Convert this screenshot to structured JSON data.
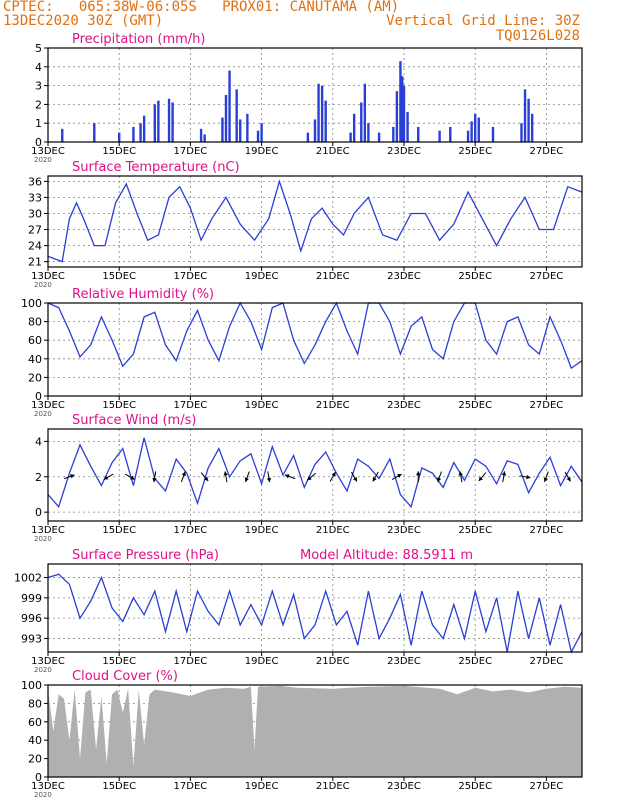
{
  "header": {
    "line1": "CPTEC:   065:38W-06:05S   PROX01: CANUTAMA (AM)",
    "line2": "13DEC2020 30Z (GMT)",
    "grid_note": "Vertical Grid Line: 30Z",
    "code": "TQ0126L028",
    "color": "#e07010"
  },
  "colors": {
    "title": "#e0108a",
    "series": "#2a3fd6",
    "cloud": "#b0b0b0"
  },
  "x_axis": {
    "start_day": 13,
    "end_day": 28,
    "tick_labels": [
      "13DEC",
      "15DEC",
      "17DEC",
      "19DEC",
      "21DEC",
      "23DEC",
      "25DEC",
      "27DEC"
    ],
    "tick_days": [
      13,
      15,
      17,
      19,
      21,
      23,
      25,
      27
    ],
    "year_label": "2020"
  },
  "chart_data": [
    {
      "type": "bar",
      "title": "Precipitation (mm/h)",
      "ylim": [
        0,
        5
      ],
      "yticks": [
        0,
        1,
        2,
        3,
        4,
        5
      ],
      "bars": [
        [
          13.4,
          0.7
        ],
        [
          14.3,
          1.0
        ],
        [
          15.0,
          0.5
        ],
        [
          15.4,
          0.8
        ],
        [
          15.6,
          1.0
        ],
        [
          15.7,
          1.4
        ],
        [
          16.0,
          2.0
        ],
        [
          16.1,
          2.2
        ],
        [
          16.4,
          2.3
        ],
        [
          16.5,
          2.1
        ],
        [
          17.3,
          0.7
        ],
        [
          17.4,
          0.4
        ],
        [
          17.9,
          1.3
        ],
        [
          18.0,
          2.5
        ],
        [
          18.1,
          3.8
        ],
        [
          18.3,
          2.8
        ],
        [
          18.4,
          1.2
        ],
        [
          18.6,
          1.5
        ],
        [
          18.9,
          0.6
        ],
        [
          19.0,
          1.0
        ],
        [
          20.3,
          0.5
        ],
        [
          20.5,
          1.2
        ],
        [
          20.6,
          3.1
        ],
        [
          20.7,
          3.0
        ],
        [
          20.8,
          2.2
        ],
        [
          21.5,
          0.5
        ],
        [
          21.6,
          1.5
        ],
        [
          21.8,
          2.1
        ],
        [
          21.9,
          3.1
        ],
        [
          22.0,
          1.0
        ],
        [
          22.3,
          0.5
        ],
        [
          22.7,
          0.8
        ],
        [
          22.8,
          2.7
        ],
        [
          22.9,
          4.3
        ],
        [
          22.95,
          3.5
        ],
        [
          23.0,
          3.0
        ],
        [
          23.1,
          1.6
        ],
        [
          23.4,
          0.8
        ],
        [
          24.0,
          0.6
        ],
        [
          24.3,
          0.8
        ],
        [
          24.8,
          0.6
        ],
        [
          24.9,
          1.1
        ],
        [
          25.0,
          1.5
        ],
        [
          25.1,
          1.3
        ],
        [
          25.5,
          0.8
        ],
        [
          26.3,
          1.0
        ],
        [
          26.4,
          2.8
        ],
        [
          26.5,
          2.3
        ],
        [
          26.6,
          1.5
        ]
      ]
    },
    {
      "type": "line",
      "title": "Surface Temperature (nC)",
      "ylim": [
        20,
        37
      ],
      "yticks": [
        21,
        24,
        27,
        30,
        33,
        36
      ],
      "x": [
        13.0,
        13.2,
        13.4,
        13.6,
        13.8,
        14.0,
        14.3,
        14.6,
        14.9,
        15.2,
        15.5,
        15.8,
        16.1,
        16.4,
        16.7,
        17.0,
        17.3,
        17.6,
        18.0,
        18.4,
        18.8,
        19.2,
        19.5,
        19.8,
        20.1,
        20.4,
        20.7,
        21.0,
        21.3,
        21.6,
        22.0,
        22.4,
        22.8,
        23.2,
        23.6,
        24.0,
        24.4,
        24.8,
        25.2,
        25.6,
        26.0,
        26.4,
        26.8,
        27.2,
        27.6,
        28.0
      ],
      "values": [
        22,
        21.5,
        21,
        29,
        32,
        29,
        24,
        24,
        32,
        35.5,
        30,
        25,
        26,
        33,
        35,
        31,
        25,
        29,
        33,
        28,
        25,
        29,
        36,
        30,
        23,
        29,
        31,
        28,
        26,
        30,
        33,
        26,
        25,
        30,
        30,
        25,
        28,
        34,
        29,
        24,
        29,
        33,
        27,
        27,
        35,
        34
      ]
    },
    {
      "type": "line",
      "title": "Relative Humidity (%)",
      "ylim": [
        0,
        100
      ],
      "yticks": [
        0,
        20,
        40,
        60,
        80,
        100
      ],
      "x": [
        13.0,
        13.3,
        13.6,
        13.9,
        14.2,
        14.5,
        14.8,
        15.1,
        15.4,
        15.7,
        16.0,
        16.3,
        16.6,
        16.9,
        17.2,
        17.5,
        17.8,
        18.1,
        18.4,
        18.7,
        19.0,
        19.3,
        19.6,
        19.9,
        20.2,
        20.5,
        20.8,
        21.1,
        21.4,
        21.7,
        22.0,
        22.3,
        22.6,
        22.9,
        23.2,
        23.5,
        23.8,
        24.1,
        24.4,
        24.7,
        25.0,
        25.3,
        25.6,
        25.9,
        26.2,
        26.5,
        26.8,
        27.1,
        27.4,
        27.7,
        28.0
      ],
      "values": [
        100,
        95,
        70,
        42,
        55,
        85,
        60,
        32,
        45,
        85,
        90,
        55,
        38,
        70,
        92,
        60,
        38,
        75,
        100,
        80,
        50,
        95,
        100,
        60,
        35,
        55,
        80,
        100,
        70,
        45,
        100,
        100,
        80,
        45,
        75,
        85,
        50,
        40,
        80,
        100,
        100,
        60,
        45,
        80,
        85,
        55,
        45,
        85,
        60,
        30,
        38
      ]
    },
    {
      "type": "line",
      "title": "Surface Wind (m/s)",
      "ylim": [
        -0.5,
        4.7
      ],
      "yticks": [
        0,
        2,
        4
      ],
      "x": [
        13.0,
        13.3,
        13.6,
        13.9,
        14.2,
        14.5,
        14.8,
        15.1,
        15.4,
        15.7,
        16.0,
        16.3,
        16.6,
        16.9,
        17.2,
        17.5,
        17.8,
        18.1,
        18.4,
        18.7,
        19.0,
        19.3,
        19.6,
        19.9,
        20.2,
        20.5,
        20.8,
        21.1,
        21.4,
        21.7,
        22.0,
        22.3,
        22.6,
        22.9,
        23.2,
        23.5,
        23.8,
        24.1,
        24.4,
        24.7,
        25.0,
        25.3,
        25.6,
        25.9,
        26.2,
        26.5,
        26.8,
        27.1,
        27.4,
        27.7,
        28.0
      ],
      "values": [
        1.0,
        0.3,
        2.2,
        3.8,
        2.6,
        1.5,
        2.8,
        3.6,
        1.5,
        4.2,
        1.9,
        1.2,
        3.0,
        2.2,
        0.5,
        2.5,
        3.6,
        2.0,
        2.9,
        3.3,
        1.6,
        3.7,
        2.1,
        3.2,
        1.4,
        2.7,
        3.4,
        2.2,
        1.2,
        3.0,
        2.6,
        1.9,
        3.0,
        1.0,
        0.3,
        2.5,
        2.2,
        1.4,
        2.8,
        1.8,
        3.0,
        2.6,
        1.6,
        2.9,
        2.7,
        1.1,
        2.2,
        3.1,
        1.5,
        2.6,
        1.7
      ],
      "arrows": [
        [
          13.6,
          70
        ],
        [
          14.7,
          240
        ],
        [
          15.3,
          120
        ],
        [
          16.0,
          190
        ],
        [
          16.8,
          20
        ],
        [
          17.4,
          140
        ],
        [
          18.0,
          350
        ],
        [
          18.6,
          200
        ],
        [
          19.2,
          170
        ],
        [
          19.8,
          290
        ],
        [
          20.4,
          230
        ],
        [
          21.0,
          30
        ],
        [
          21.6,
          150
        ],
        [
          22.2,
          210
        ],
        [
          22.8,
          60
        ],
        [
          23.4,
          0
        ],
        [
          24.0,
          200
        ],
        [
          24.6,
          350
        ],
        [
          25.2,
          220
        ],
        [
          25.8,
          10
        ],
        [
          26.4,
          100
        ],
        [
          27.0,
          200
        ],
        [
          27.6,
          150
        ]
      ]
    },
    {
      "type": "line",
      "title": "Surface Pressure (hPa)",
      "subtitle": "Model Altitude: 88.5911 m",
      "ylim": [
        991,
        1004
      ],
      "yticks": [
        993,
        996,
        999,
        1002
      ],
      "x": [
        13.0,
        13.3,
        13.6,
        13.9,
        14.2,
        14.5,
        14.8,
        15.1,
        15.4,
        15.7,
        16.0,
        16.3,
        16.6,
        16.9,
        17.2,
        17.5,
        17.8,
        18.1,
        18.4,
        18.7,
        19.0,
        19.3,
        19.6,
        19.9,
        20.2,
        20.5,
        20.8,
        21.1,
        21.4,
        21.7,
        22.0,
        22.3,
        22.6,
        22.9,
        23.2,
        23.5,
        23.8,
        24.1,
        24.4,
        24.7,
        25.0,
        25.3,
        25.6,
        25.9,
        26.2,
        26.5,
        26.8,
        27.1,
        27.4,
        27.7,
        28.0
      ],
      "values": [
        1002,
        1002.5,
        1001,
        996,
        998.5,
        1002,
        997.5,
        995.5,
        999,
        996.5,
        1000,
        994,
        1000,
        994,
        1000,
        997,
        995,
        1000,
        995,
        998,
        995,
        1000,
        995,
        999.5,
        993,
        995,
        1000,
        995,
        997,
        992,
        1000,
        993,
        996,
        999.5,
        992,
        1000,
        995,
        993,
        998,
        993,
        1000,
        994,
        999,
        991,
        1000,
        993,
        999,
        992,
        998,
        991,
        994
      ]
    },
    {
      "type": "area",
      "title": "Cloud Cover (%)",
      "ylim": [
        0,
        100
      ],
      "yticks": [
        0,
        20,
        40,
        60,
        80,
        100
      ],
      "x": [
        13.0,
        13.15,
        13.3,
        13.45,
        13.6,
        13.75,
        13.9,
        14.05,
        14.2,
        14.35,
        14.5,
        14.65,
        14.8,
        14.95,
        15.1,
        15.25,
        15.4,
        15.55,
        15.7,
        15.85,
        16.0,
        16.5,
        17.0,
        17.5,
        18.0,
        18.5,
        18.7,
        18.8,
        18.9,
        19.5,
        20.0,
        21.0,
        22.0,
        23.0,
        24.0,
        24.5,
        25.0,
        25.5,
        26.0,
        26.5,
        27.0,
        27.5,
        28.0
      ],
      "values": [
        95,
        50,
        90,
        85,
        40,
        95,
        20,
        92,
        95,
        30,
        88,
        15,
        90,
        95,
        70,
        96,
        12,
        95,
        35,
        90,
        95,
        92,
        88,
        95,
        97,
        96,
        98,
        30,
        98,
        99,
        97,
        96,
        98,
        99,
        96,
        90,
        97,
        93,
        95,
        92,
        96,
        98,
        97
      ]
    }
  ]
}
